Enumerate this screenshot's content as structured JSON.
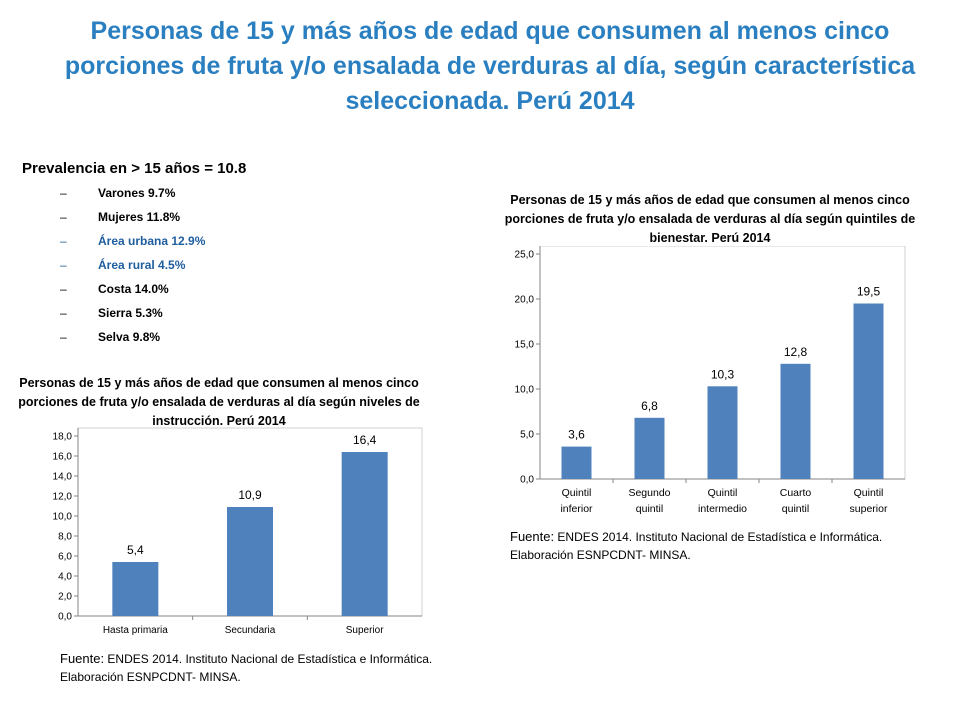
{
  "slide": {
    "title": "Personas de 15 y más años de edad que consumen al menos cinco porciones de fruta y/o ensalada de verduras al día, según característica seleccionada. Perú 2014"
  },
  "summary": {
    "headline": "Prevalencia en > 15 años = 10.8",
    "items": [
      {
        "text": "Varones 9.7%"
      },
      {
        "text": "Mujeres 11.8%"
      },
      {
        "text": "Área urbana 12.9%"
      },
      {
        "text": "Área rural 4.5%"
      },
      {
        "text": "Costa 14.0%"
      },
      {
        "text": "Sierra 5.3%"
      },
      {
        "text": "Selva 9.8%"
      }
    ],
    "bullet_symbol": "–",
    "colors": {
      "default": "#000000",
      "accent": "#1f5e9e"
    }
  },
  "sources": {
    "label": "Fuente:",
    "text": " ENDES 2014. Instituto Nacional de Estadística e Informática. Elaboración ESNPCDNT- MINSA."
  },
  "chart_data": [
    {
      "type": "bar",
      "title": "Personas de 15 y más años de edad que consumen al menos cinco porciones de fruta y/o ensalada de verduras al día según niveles de instrucción. Perú 2014",
      "categories": [
        "Hasta primaria",
        "Secundaria",
        "Superior"
      ],
      "values": [
        5.4,
        10.9,
        16.4
      ],
      "data_labels": [
        "5,4",
        "10,9",
        "16,4"
      ],
      "ylim": [
        0,
        18
      ],
      "yticks": [
        "0,0",
        "2,0",
        "4,0",
        "6,0",
        "8,0",
        "10,0",
        "12,0",
        "14,0",
        "16,0",
        "18,0"
      ],
      "grid": false,
      "legend": "none",
      "bar_color": "#4f81bd"
    },
    {
      "type": "bar",
      "title": "Personas de 15 y más años de edad que consumen al menos cinco porciones de fruta y/o ensalada de verduras al día según quintiles de bienestar. Perú 2014",
      "categories": [
        "Quintil inferior",
        "Segundo quintil",
        "Quintil intermedio",
        "Cuarto quintil",
        "Quintil superior"
      ],
      "category_lines": [
        [
          "Quintil",
          "inferior"
        ],
        [
          "Segundo",
          "quintil"
        ],
        [
          "Quintil",
          "intermedio"
        ],
        [
          "Cuarto",
          "quintil"
        ],
        [
          "Quintil",
          "superior"
        ]
      ],
      "values": [
        3.6,
        6.8,
        10.3,
        12.8,
        19.5
      ],
      "data_labels": [
        "3,6",
        "6,8",
        "10,3",
        "12,8",
        "19,5"
      ],
      "ylim": [
        0,
        25
      ],
      "yticks": [
        "0,0",
        "5,0",
        "10,0",
        "15,0",
        "20,0",
        "25,0"
      ],
      "grid": false,
      "legend": "none",
      "bar_color": "#4f81bd"
    }
  ]
}
